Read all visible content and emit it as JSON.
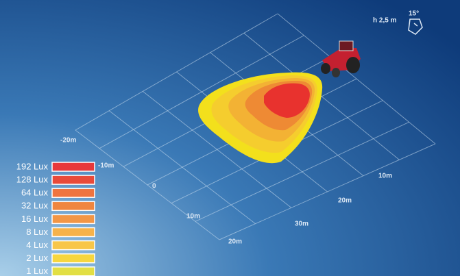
{
  "scene": {
    "height_note": "h 2,5 m",
    "angle_note": "15°",
    "axis_labels": [
      {
        "label": "-20m"
      },
      {
        "label": "-10m"
      },
      {
        "label": "0"
      },
      {
        "label": "10m"
      },
      {
        "label": "20m"
      },
      {
        "label": "30m"
      },
      {
        "label": "20m"
      },
      {
        "label": "10m"
      }
    ]
  },
  "legend": [
    {
      "label": "192 Lux",
      "color": "#e8383a"
    },
    {
      "label": "128 Lux",
      "color": "#e94a3a"
    },
    {
      "label": "64 Lux",
      "color": "#ef7440"
    },
    {
      "label": "32 Lux",
      "color": "#f08640"
    },
    {
      "label": "16 Lux",
      "color": "#f29646"
    },
    {
      "label": "8 Lux",
      "color": "#f6b24a"
    },
    {
      "label": "4 Lux",
      "color": "#f8c648"
    },
    {
      "label": "2 Lux",
      "color": "#f6d63e"
    },
    {
      "label": "1 Lux",
      "color": "#e2df44"
    }
  ]
}
